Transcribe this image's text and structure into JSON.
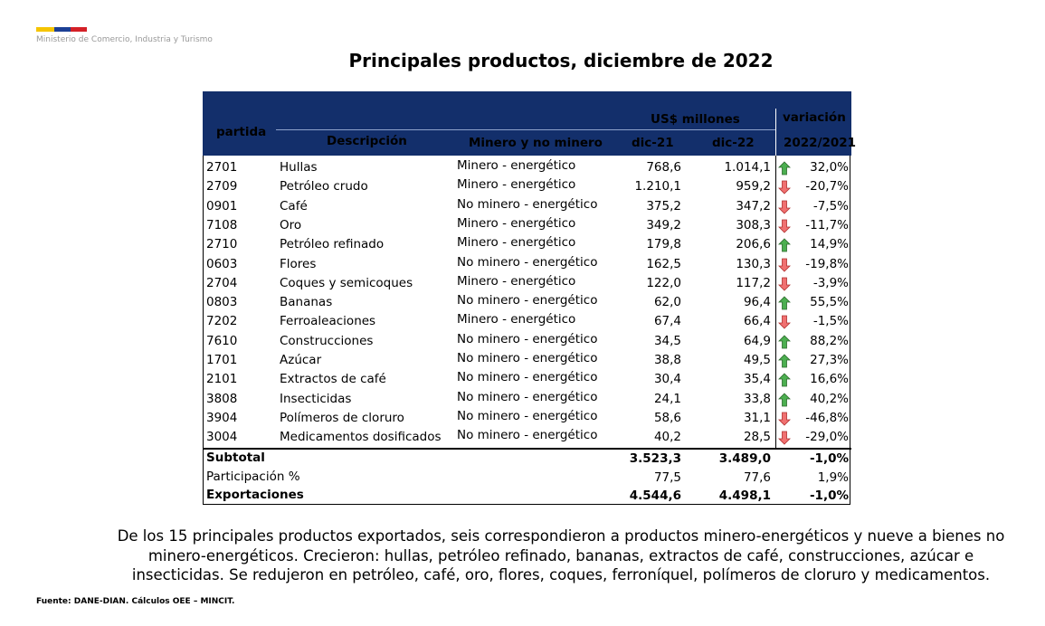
{
  "header": {
    "ministry": "Ministerio de Comercio, Industria y Turismo",
    "title": "Principales productos, diciembre de 2022"
  },
  "table": {
    "head": {
      "partida": "partida",
      "unit": "US$ millones",
      "variacion": "variación",
      "descripcion": "Descripción",
      "minero": "Minero y no minero",
      "dic21": "dic-21",
      "dic22": "dic-22",
      "period": "2022/2021"
    },
    "rows": [
      [
        "2701",
        "Hullas",
        "Minero - energético",
        "768,6",
        "1.014,1",
        "32,0%"
      ],
      [
        "2709",
        "Petróleo crudo",
        "Minero - energético",
        "1.210,1",
        "959,2",
        "-20,7%"
      ],
      [
        "0901",
        "Café",
        "No minero - energético",
        "375,2",
        "347,2",
        "-7,5%"
      ],
      [
        "7108",
        "Oro",
        "Minero - energético",
        "349,2",
        "308,3",
        "-11,7%"
      ],
      [
        "2710",
        "Petróleo refinado",
        "Minero - energético",
        "179,8",
        "206,6",
        "14,9%"
      ],
      [
        "0603",
        "Flores",
        "No minero - energético",
        "162,5",
        "130,3",
        "-19,8%"
      ],
      [
        "2704",
        "Coques y semicoques",
        "Minero - energético",
        "122,0",
        "117,2",
        "-3,9%"
      ],
      [
        "0803",
        "Bananas",
        "No minero - energético",
        "62,0",
        "96,4",
        "55,5%"
      ],
      [
        "7202",
        "Ferroaleaciones",
        "Minero - energético",
        "67,4",
        "66,4",
        "-1,5%"
      ],
      [
        "7610",
        "Construcciones",
        "No minero - energético",
        "34,5",
        "64,9",
        "88,2%"
      ],
      [
        "1701",
        "Azúcar",
        "No minero - energético",
        "38,8",
        "49,5",
        "27,3%"
      ],
      [
        "2101",
        "Extractos de café",
        "No minero - energético",
        "30,4",
        "35,4",
        "16,6%"
      ],
      [
        "3808",
        "Insecticidas",
        "No minero - energético",
        "24,1",
        "33,8",
        "40,2%"
      ],
      [
        "3904",
        "Polímeros de cloruro",
        "No minero - energético",
        "58,6",
        "31,1",
        "-46,8%"
      ],
      [
        "3004",
        "Medicamentos dosificados",
        "No minero - energético",
        "40,2",
        "28,5",
        "-29,0%"
      ]
    ],
    "totals": [
      [
        "Subtotal",
        "3.523,3",
        "3.489,0",
        "-1,0%"
      ],
      [
        "Participación %",
        "77,5",
        "77,6",
        "1,9%"
      ],
      [
        "Exportaciones",
        "4.544,6",
        "4.498,1",
        "-1,0%"
      ]
    ]
  },
  "summary": "De los 15 principales productos exportados, seis correspondieron a productos minero-energéticos y nueve a bienes no minero-energéticos.  Crecieron: hullas, petróleo refinado, bananas, extractos de café, construcciones, azúcar e insecticidas. Se redujeron en petróleo, café, oro, flores, coques, ferroníquel, polímeros de cloruro y medicamentos.",
  "source": "Fuente: DANE-DIAN. Cálculos OEE – MINCIT."
}
